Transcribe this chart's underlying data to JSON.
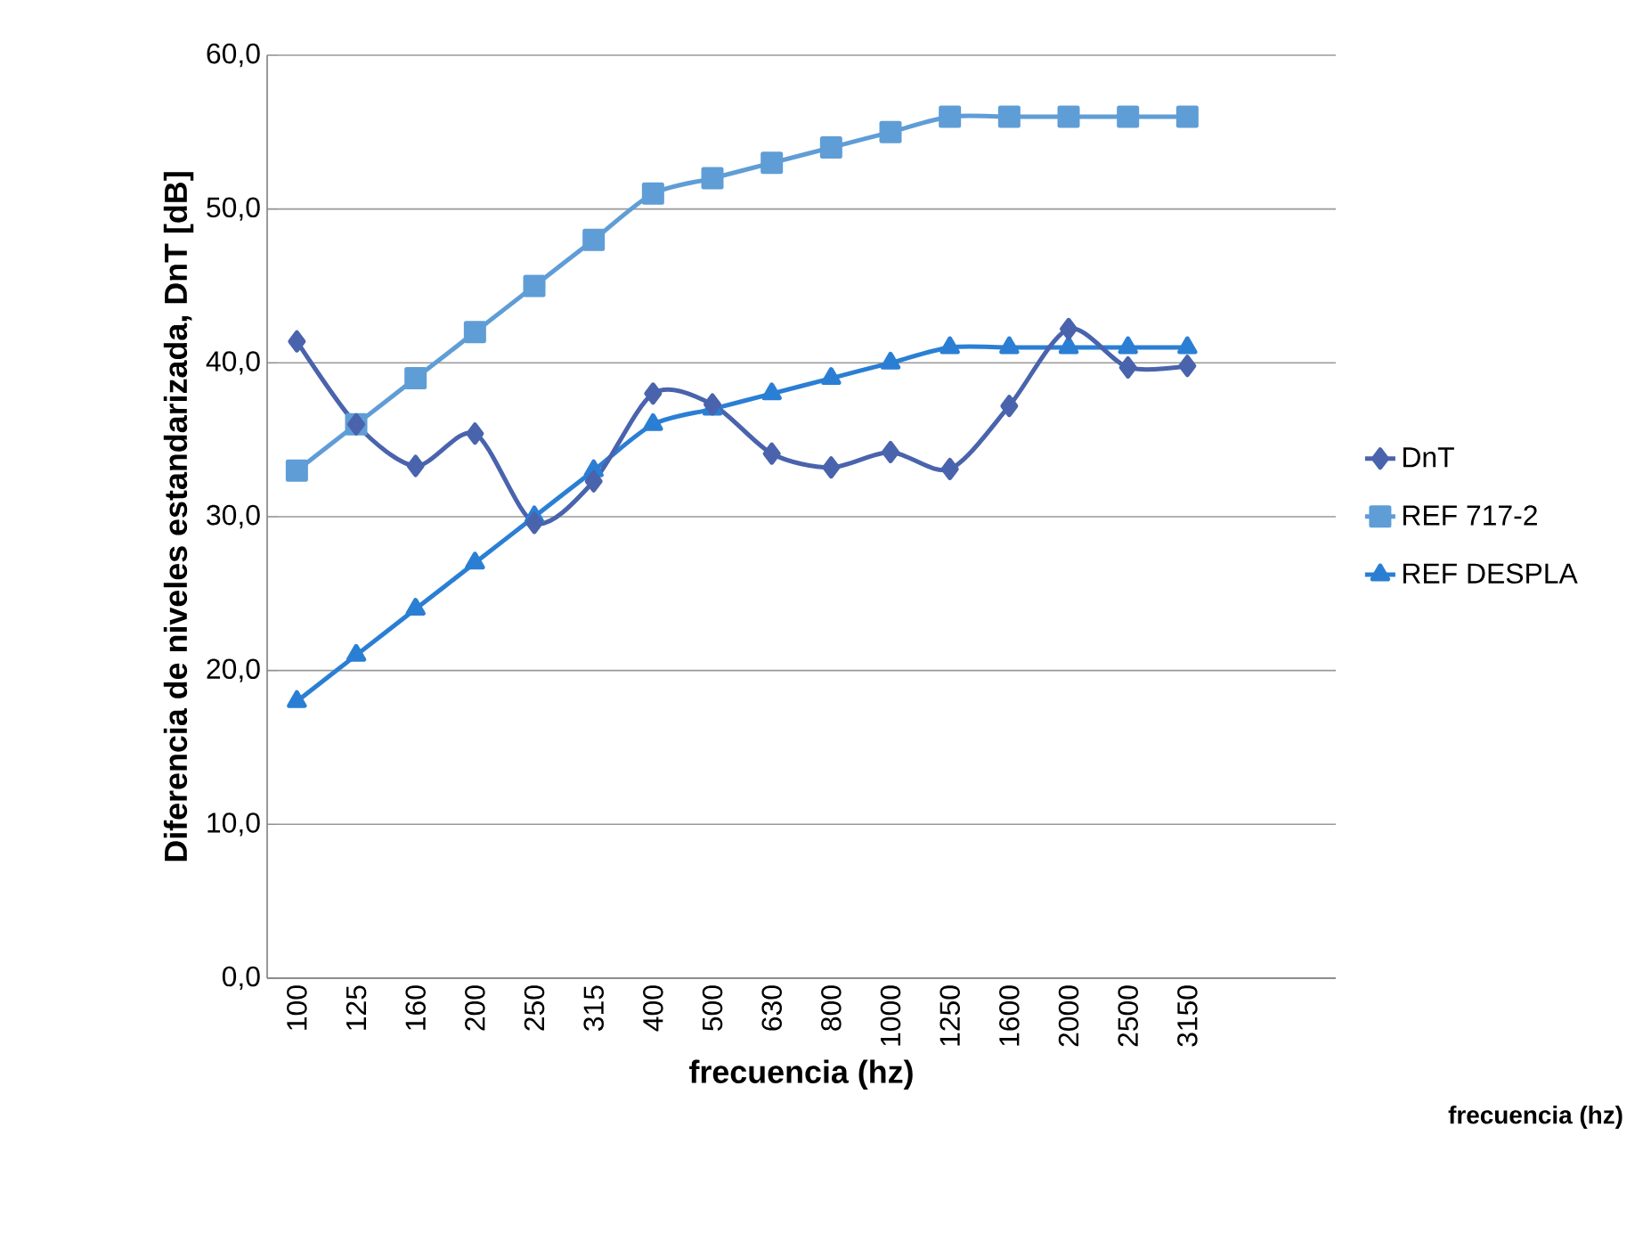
{
  "chart_data": {
    "type": "line",
    "ylabel": "Diferencia de niveles estandarizada, DnT [dB]",
    "xlabel": "frecuencia (hz)",
    "annotations": [
      "frecuencia (hz)"
    ],
    "categories": [
      "100",
      "125",
      "160",
      "200",
      "250",
      "315",
      "400",
      "500",
      "630",
      "800",
      "1000",
      "1250",
      "1600",
      "2000",
      "2500",
      "3150",
      null,
      null
    ],
    "ylim": [
      0,
      60
    ],
    "yticks": [
      {
        "value": 0,
        "label": "0,0"
      },
      {
        "value": 10,
        "label": "10,0"
      },
      {
        "value": 20,
        "label": "20,0"
      },
      {
        "value": 30,
        "label": "30,0"
      },
      {
        "value": 40,
        "label": "40,0"
      },
      {
        "value": 50,
        "label": "50,0"
      },
      {
        "value": 60,
        "label": "60,0"
      }
    ],
    "grid": "y",
    "legend": "right",
    "line_style": "solid",
    "series": [
      {
        "name": "DnT",
        "color": "#4a63ad",
        "marker": "diamond",
        "values": [
          41.4,
          36.0,
          33.3,
          35.4,
          29.6,
          32.3,
          38.0,
          37.3,
          34.1,
          33.2,
          34.2,
          33.1,
          37.2,
          42.2,
          39.7,
          39.8,
          null,
          null
        ]
      },
      {
        "name": "REF 717-2",
        "color": "#5f9dd6",
        "marker": "square",
        "values": [
          33,
          36,
          39,
          42,
          45,
          48,
          51,
          52,
          53,
          54,
          55,
          56,
          56,
          56,
          56,
          56,
          null,
          null
        ]
      },
      {
        "name": "REF DESPLA",
        "color": "#2a7fd4",
        "marker": "triangle",
        "values": [
          18,
          21,
          24,
          27,
          30,
          33,
          36,
          37,
          38,
          39,
          40,
          41,
          41,
          41,
          41,
          41,
          null,
          null
        ]
      }
    ]
  }
}
